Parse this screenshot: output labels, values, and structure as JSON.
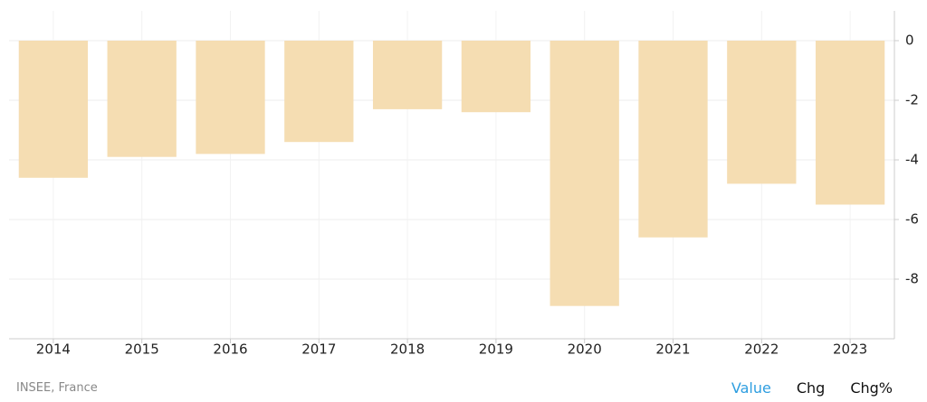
{
  "chart_data": {
    "type": "bar",
    "categories": [
      "2014",
      "2015",
      "2016",
      "2017",
      "2018",
      "2019",
      "2020",
      "2021",
      "2022",
      "2023"
    ],
    "values": [
      -4.6,
      -3.9,
      -3.8,
      -3.4,
      -2.3,
      -2.4,
      -8.9,
      -6.6,
      -4.8,
      -5.5
    ],
    "color": "#f5ddb2",
    "ylim": [
      -10,
      1
    ],
    "yticks": [
      0,
      -2,
      -4,
      -6,
      -8
    ],
    "grid": true,
    "y_axis_side": "right"
  },
  "footer": {
    "source": "INSEE, France",
    "tabs": [
      "Value",
      "Chg",
      "Chg%"
    ],
    "active_tab": 0
  }
}
